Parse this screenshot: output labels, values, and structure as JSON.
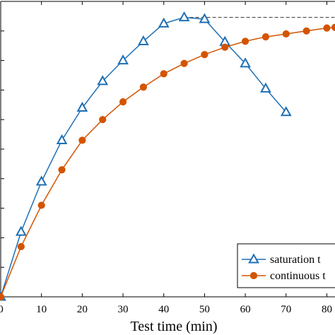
{
  "chart_data": {
    "type": "line",
    "xlabel": "Test time (min)",
    "ylabel": "",
    "xlim": [
      0,
      82
    ],
    "ylim": [
      0,
      100
    ],
    "x_ticks": [
      "0",
      "10",
      "20",
      "30",
      "40",
      "50",
      "60",
      "70",
      "80"
    ],
    "grid": false,
    "legend_position": "bottom-right",
    "series": [
      {
        "name": "saturation t",
        "marker": "triangle",
        "color": "#1f6fb5",
        "x": [
          0,
          5,
          10,
          15,
          20,
          25,
          30,
          35,
          40,
          45,
          50,
          55,
          60,
          65,
          70
        ],
        "y": [
          0,
          22,
          39,
          53,
          64,
          73,
          80,
          86.5,
          92.5,
          94.6,
          94.0,
          86.3,
          79.0,
          70.5,
          62.5
        ]
      },
      {
        "name": "continuous t",
        "marker": "circle",
        "color": "#d35400",
        "x": [
          0,
          5,
          10,
          15,
          20,
          25,
          30,
          35,
          40,
          45,
          50,
          55,
          60,
          65,
          70,
          75,
          80,
          82
        ],
        "y": [
          0,
          17,
          31,
          43,
          53,
          60,
          66,
          71,
          75.5,
          79,
          82,
          84.5,
          86.5,
          88,
          89,
          90,
          91,
          91.2
        ]
      }
    ],
    "reference_line": {
      "style": "dashed",
      "y": 94.6,
      "x_start": 45,
      "x_end": 82
    }
  }
}
